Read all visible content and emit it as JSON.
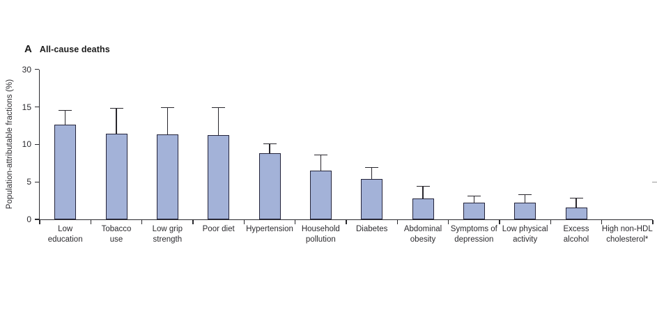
{
  "figure": {
    "panel_label": "A",
    "title": "All-cause deaths",
    "ylabel": "Population-attributable fractions (%)"
  },
  "chart_data": {
    "type": "bar",
    "panel_label": "A",
    "title": "All-cause deaths",
    "ylabel": "Population-attributable fractions (%)",
    "xlabel": "",
    "grid": false,
    "legend": false,
    "yticks": [
      0,
      5,
      10,
      15,
      30
    ],
    "axis_note": "y-axis compressed above 15: the 30 tick sits one 5-unit tick interval above 15",
    "categories": [
      "Low education",
      "Tobacco use",
      "Low grip strength",
      "Poor diet",
      "Hypertension",
      "Household pollution",
      "Diabetes",
      "Abdominal obesity",
      "Symptoms of depression",
      "Low physical activity",
      "Excess alcohol",
      "High non-HDL cholesterol*"
    ],
    "category_label_lines": [
      [
        "Low",
        "education"
      ],
      [
        "Tobacco",
        "use"
      ],
      [
        "Low grip",
        "strength"
      ],
      [
        "Poor diet"
      ],
      [
        "Hypertension"
      ],
      [
        "Household",
        "pollution"
      ],
      [
        "Diabetes"
      ],
      [
        "Abdominal",
        "obesity"
      ],
      [
        "Symptoms of",
        "depression"
      ],
      [
        "Low physical",
        "activity"
      ],
      [
        "Excess",
        "alcohol"
      ],
      [
        "High non-HDL",
        "cholesterol*"
      ]
    ],
    "values": [
      12.6,
      11.4,
      11.3,
      11.2,
      8.8,
      6.5,
      5.4,
      2.8,
      2.2,
      2.2,
      1.6,
      0
    ],
    "upper_ci": [
      14.5,
      14.8,
      14.9,
      14.9,
      10.1,
      8.6,
      6.9,
      4.4,
      3.1,
      3.3,
      2.8,
      null
    ],
    "error_bars": "upper 95% CI whisker with horizontal cap, drawn upward from bar top",
    "colors": {
      "bar_fill": "#a3b2d8",
      "bar_border": "#23233a",
      "axis": "#2a2a2e",
      "error_bar": "#28262c",
      "text": "#2b2a2e"
    }
  }
}
